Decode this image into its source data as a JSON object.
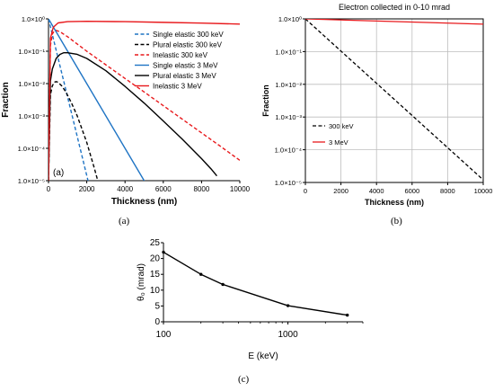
{
  "figure": {
    "caption_a": "(a)",
    "caption_b": "(b)",
    "caption_c": "(c)"
  },
  "colors": {
    "red": "#e8191c",
    "blue": "#1f74c4",
    "black": "#000000",
    "grid": "#bdbdbd"
  },
  "chart_data": [
    {
      "id": "a",
      "type": "line",
      "xlabel": "Thickness (nm)",
      "ylabel": "Fraction",
      "xlim": [
        0,
        10000
      ],
      "ylim": [
        1e-05,
        1
      ],
      "yscale": "log",
      "grid": false,
      "legend_position": "top-right",
      "inset_label": "(a)",
      "xticks": [
        0,
        2000,
        4000,
        6000,
        8000,
        10000
      ],
      "xtick_labels": [
        "0",
        "2000",
        "4000",
        "6000",
        "8000",
        "10000"
      ],
      "yticks": [
        1,
        0.1,
        0.01,
        0.001,
        0.0001,
        1e-05
      ],
      "ytick_labels": [
        "1.0×10⁰",
        "1.0×10⁻¹",
        "1.0×10⁻²",
        "1.0×10⁻³",
        "1.0×10⁻⁴",
        "1.0×10⁻⁵"
      ],
      "series": [
        {
          "name": "Single elastic 300 keV",
          "color": "#1f74c4",
          "dash": "dashed",
          "x": [
            0,
            500,
            1000,
            1500,
            2000,
            2400
          ],
          "y": [
            1,
            0.0616,
            0.0038,
            0.000234,
            1.44e-05,
            1.55e-06
          ]
        },
        {
          "name": "Plural elastic 300 keV",
          "color": "#000000",
          "dash": "dashed",
          "x": [
            0,
            100,
            200,
            300,
            400,
            500,
            700,
            900,
            1200,
            1500,
            2000,
            2400,
            2800
          ],
          "y": [
            1e-05,
            0.0045,
            0.0085,
            0.011,
            0.0115,
            0.011,
            0.0084,
            0.0056,
            0.00253,
            0.00101,
            0.000152,
            2.38e-05,
            3.3e-06
          ]
        },
        {
          "name": "Inelastic 300 keV",
          "color": "#e8191c",
          "dash": "dashed",
          "x": [
            0,
            100,
            200,
            300,
            400,
            600,
            1000,
            2000,
            3000,
            4000,
            5000,
            6000,
            7000,
            8000,
            9000,
            10000
          ],
          "y": [
            1e-05,
            0.15,
            0.34,
            0.42,
            0.44,
            0.4,
            0.28,
            0.1,
            0.038,
            0.0144,
            0.0055,
            0.00208,
            0.00079,
            0.0003,
            0.000114,
            4.25e-05
          ]
        },
        {
          "name": "Single elastic 3 MeV",
          "color": "#1f74c4",
          "dash": "solid",
          "x": [
            0,
            1000,
            2000,
            3000,
            4000,
            5000,
            5200
          ],
          "y": [
            1,
            0.1,
            0.01,
            0.001,
            0.0001,
            1e-05,
            6.3e-06
          ]
        },
        {
          "name": "Plural elastic 3 MeV",
          "color": "#000000",
          "dash": "solid",
          "x": [
            0,
            100,
            200,
            400,
            600,
            800,
            1000,
            1500,
            2000,
            3000,
            4000,
            5000,
            6000,
            7000,
            8000,
            8500,
            8800
          ],
          "y": [
            1e-05,
            0.012,
            0.028,
            0.06,
            0.08,
            0.09,
            0.09,
            0.08,
            0.06,
            0.025,
            0.0082,
            0.0025,
            0.0007,
            0.00019,
            4.8e-05,
            2.3e-05,
            1.4e-05
          ]
        },
        {
          "name": "Inelastic 3 MeV",
          "color": "#e8191c",
          "dash": "solid",
          "x": [
            0,
            100,
            250,
            500,
            1000,
            2000,
            4000,
            6000,
            8000,
            10000
          ],
          "y": [
            1e-05,
            0.25,
            0.55,
            0.75,
            0.82,
            0.84,
            0.82,
            0.78,
            0.74,
            0.69
          ]
        }
      ]
    },
    {
      "id": "b",
      "type": "line",
      "title": "Electron collected in 0-10 mrad",
      "xlabel": "Thickness (nm)",
      "ylabel": "Fraction",
      "xlim": [
        0,
        10000
      ],
      "ylim": [
        1e-05,
        1
      ],
      "yscale": "log",
      "grid": true,
      "legend_position": "bottom-left",
      "xticks": [
        0,
        2000,
        4000,
        6000,
        8000,
        10000
      ],
      "xtick_labels": [
        "0",
        "2000",
        "4000",
        "6000",
        "8000",
        "10000"
      ],
      "yticks": [
        1,
        0.1,
        0.01,
        0.001,
        0.0001,
        1e-05
      ],
      "ytick_labels": [
        "1.0×10⁰",
        "1.0×10⁻¹",
        "1.0×10⁻²",
        "1.0×10⁻³",
        "1.0×10⁻⁴",
        "1.0×10⁻⁵"
      ],
      "series": [
        {
          "name": "300 keV",
          "color": "#000000",
          "dash": "dashed",
          "x": [
            0,
            10000
          ],
          "y": [
            1,
            1.2e-05
          ]
        },
        {
          "name": "3 MeV",
          "color": "#e8191c",
          "dash": "solid",
          "x": [
            0,
            10000
          ],
          "y": [
            1,
            0.69
          ]
        }
      ]
    },
    {
      "id": "c",
      "type": "line",
      "xlabel": "E (keV)",
      "ylabel": "θ₀ (mrad)",
      "xlim": [
        100,
        4000
      ],
      "xscale": "log",
      "ylim": [
        0,
        25
      ],
      "grid": false,
      "markers": true,
      "xticks": [
        100,
        1000
      ],
      "xtick_labels": [
        "100",
        "1000"
      ],
      "yticks": [
        0,
        5,
        10,
        15,
        20,
        25
      ],
      "ytick_labels": [
        "0",
        "5",
        "10",
        "15",
        "20",
        "25"
      ],
      "series": [
        {
          "name": "",
          "color": "#000000",
          "dash": "solid",
          "x": [
            100,
            200,
            300,
            1000,
            3000
          ],
          "y": [
            22,
            15,
            11.8,
            5.1,
            2.1
          ]
        }
      ]
    }
  ]
}
